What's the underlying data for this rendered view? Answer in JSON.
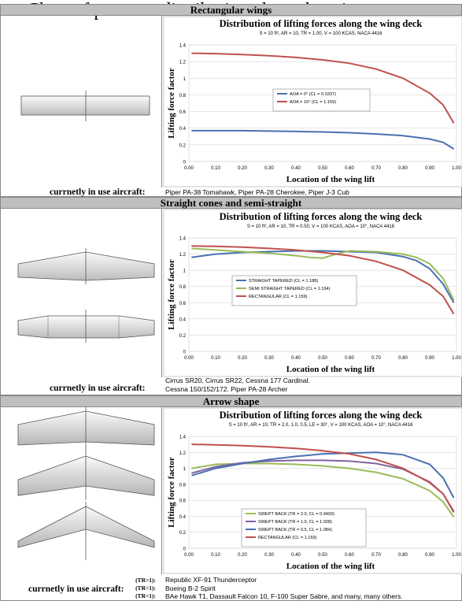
{
  "page": {
    "title": "Chart of pressure distribution along the wing"
  },
  "sections": [
    {
      "header": "Rectangular wings",
      "aircraft_label": "currnetly in use aircraft:",
      "aircraft_lines": [
        "Piper PA-38 Tomahawk, Piper PA-28 Cherokee, Piper J-3 Cub"
      ]
    },
    {
      "header": "Straight cones and semi-straight",
      "aircraft_label": "currnetly in use aircraft:",
      "aircraft_lines": [
        "Cirrus SR20, Cirrus SR22, Cessna 177 Cardinal.",
        "Cessna 150/152/172. Piper PA-28 Archer"
      ]
    },
    {
      "header": "Arrow shape",
      "aircraft_label": "currnetly in use aircraft:",
      "tr_labels": [
        "(TR>1):",
        "(TR=1):",
        "(TR<1):"
      ],
      "aircraft_lines": [
        "Republic XF-91 Thunderceptor",
        "Boeing B-2 Spirit",
        "BAe Hawk T1, Dassault Falcon 10, F-100 Super Sabre, and many, many others."
      ]
    }
  ],
  "chart_data": [
    {
      "type": "line",
      "title": "Distribution of lifting forces along the wing deck",
      "subtitle": "S = 10 ft², AR = 10, TR = 1.00, V = 100 KCAS, NACA 4416",
      "xlabel": "Location of the wing lift",
      "ylabel": "Lifting force factor",
      "xlim": [
        0,
        1.0
      ],
      "ylim": [
        0,
        1.4
      ],
      "xticks": [
        "0.00",
        "0.10",
        "0.20",
        "0.30",
        "0.40",
        "0.50",
        "0.60",
        "0.70",
        "0.80",
        "0.90",
        "1.00"
      ],
      "yticks": [
        "0",
        "0.2",
        "0.4",
        "0.6",
        "0.8",
        "1",
        "1.2",
        "1.4"
      ],
      "legend_position": "center-right",
      "colors": {
        "blue": "#4a70b0",
        "red": "#c0504d"
      },
      "series": [
        {
          "name": "AOA = 0° (CL = 0.3337)",
          "color": "#4a70b0",
          "x": [
            0.01,
            0.1,
            0.2,
            0.3,
            0.4,
            0.5,
            0.6,
            0.7,
            0.8,
            0.9,
            0.95,
            0.99
          ],
          "y": [
            0.37,
            0.37,
            0.37,
            0.365,
            0.36,
            0.355,
            0.345,
            0.33,
            0.31,
            0.27,
            0.23,
            0.15
          ]
        },
        {
          "name": "AOA = 10° (CL = 1.159)",
          "color": "#c0504d",
          "x": [
            0.01,
            0.1,
            0.2,
            0.3,
            0.4,
            0.5,
            0.6,
            0.7,
            0.8,
            0.9,
            0.95,
            0.99
          ],
          "y": [
            1.3,
            1.295,
            1.285,
            1.27,
            1.25,
            1.22,
            1.18,
            1.11,
            1.0,
            0.82,
            0.68,
            0.46
          ]
        }
      ]
    },
    {
      "type": "line",
      "title": "Distribution of lifting forces along the wing deck",
      "subtitle": "S = 10 ft², AR = 10, TR = 0.50, V = 100 KCAS, AOA = 10°, NACA 4416",
      "xlabel": "Location of the wing lift",
      "ylabel": "Lifting force factor",
      "xlim": [
        0,
        1.0
      ],
      "ylim": [
        0,
        1.4
      ],
      "xticks": [
        "0.00",
        "0.10",
        "0.20",
        "0.30",
        "0.40",
        "0.50",
        "0.60",
        "0.70",
        "0.80",
        "0.90",
        "1.00"
      ],
      "yticks": [
        "0",
        "0.2",
        "0.4",
        "0.6",
        "0.8",
        "1",
        "1.2",
        "1.4"
      ],
      "legend_position": "center",
      "colors": {
        "blue": "#4a70b0",
        "green": "#9bbb59",
        "red": "#c0504d"
      },
      "series": [
        {
          "name": "STRAIGHT TAPERED (CL = 1.188)",
          "color": "#4a70b0",
          "x": [
            0.01,
            0.1,
            0.2,
            0.3,
            0.4,
            0.5,
            0.6,
            0.7,
            0.8,
            0.85,
            0.9,
            0.95,
            0.99
          ],
          "y": [
            1.16,
            1.2,
            1.22,
            1.23,
            1.24,
            1.24,
            1.23,
            1.22,
            1.17,
            1.12,
            1.02,
            0.83,
            0.6
          ]
        },
        {
          "name": "SEMI STRAIGHT TAPERED (CL = 1.194)",
          "color": "#9bbb59",
          "x": [
            0.01,
            0.1,
            0.2,
            0.3,
            0.4,
            0.45,
            0.5,
            0.55,
            0.6,
            0.7,
            0.8,
            0.85,
            0.9,
            0.95,
            0.99
          ],
          "y": [
            1.27,
            1.25,
            1.23,
            1.21,
            1.18,
            1.16,
            1.15,
            1.2,
            1.24,
            1.23,
            1.2,
            1.16,
            1.08,
            0.9,
            0.63
          ]
        },
        {
          "name": "RECTANGULAR (CL = 1.159)",
          "color": "#c0504d",
          "x": [
            0.01,
            0.1,
            0.2,
            0.3,
            0.4,
            0.5,
            0.6,
            0.7,
            0.8,
            0.9,
            0.95,
            0.99
          ],
          "y": [
            1.3,
            1.295,
            1.285,
            1.27,
            1.25,
            1.22,
            1.18,
            1.11,
            1.0,
            0.82,
            0.68,
            0.46
          ]
        }
      ]
    },
    {
      "type": "line",
      "title": "Distribution of lifting forces along the wing deck",
      "subtitle": "S = 10 ft², AR = 10, TR = 2.0, 1.0, 0.5, LE = 30°, V = 100 KCAS, AOA = 10°, NACA 4416",
      "xlabel": "Location of the wing lift",
      "ylabel": "Lifting force factor",
      "xlim": [
        0,
        1.0
      ],
      "ylim": [
        0,
        1.4
      ],
      "xticks": [
        "0.00",
        "0.10",
        "0.20",
        "0.30",
        "0.40",
        "0.50",
        "0.60",
        "0.70",
        "0.80",
        "0.90",
        "1.00"
      ],
      "yticks": [
        "0",
        "0.2",
        "0.4",
        "0.6",
        "0.8",
        "1",
        "1.2",
        "1.4"
      ],
      "legend_position": "center-right",
      "colors": {
        "green": "#9bbb59",
        "purple": "#8064a2",
        "blue": "#4a70b0",
        "red": "#c0504d"
      },
      "series": [
        {
          "name": "SWEPT BACK (TR = 2.0, CL = 0.9493)",
          "color": "#9bbb59",
          "x": [
            0.01,
            0.1,
            0.2,
            0.3,
            0.4,
            0.5,
            0.6,
            0.7,
            0.8,
            0.9,
            0.95,
            0.99
          ],
          "y": [
            1.0,
            1.05,
            1.06,
            1.06,
            1.05,
            1.03,
            1.0,
            0.95,
            0.87,
            0.72,
            0.58,
            0.39
          ]
        },
        {
          "name": "SWEPT BACK (TR = 1.0, CL = 1.028)",
          "color": "#8064a2",
          "x": [
            0.01,
            0.1,
            0.2,
            0.3,
            0.4,
            0.5,
            0.6,
            0.7,
            0.8,
            0.9,
            0.95,
            0.99
          ],
          "y": [
            0.94,
            1.02,
            1.07,
            1.09,
            1.1,
            1.1,
            1.09,
            1.06,
            0.99,
            0.83,
            0.68,
            0.45
          ]
        },
        {
          "name": "SWEPT BACK (TR = 0.5, CL = 1.084)",
          "color": "#4a70b0",
          "x": [
            0.01,
            0.1,
            0.2,
            0.3,
            0.4,
            0.5,
            0.6,
            0.7,
            0.8,
            0.9,
            0.95,
            0.99
          ],
          "y": [
            0.91,
            1.0,
            1.06,
            1.11,
            1.15,
            1.18,
            1.19,
            1.2,
            1.17,
            1.05,
            0.88,
            0.63
          ]
        },
        {
          "name": "RECTANGULAR (CL = 1.159)",
          "color": "#c0504d",
          "x": [
            0.01,
            0.1,
            0.2,
            0.3,
            0.4,
            0.5,
            0.6,
            0.7,
            0.8,
            0.9,
            0.95,
            0.99
          ],
          "y": [
            1.3,
            1.295,
            1.285,
            1.27,
            1.25,
            1.22,
            1.18,
            1.11,
            1.0,
            0.82,
            0.68,
            0.46
          ]
        }
      ]
    }
  ]
}
